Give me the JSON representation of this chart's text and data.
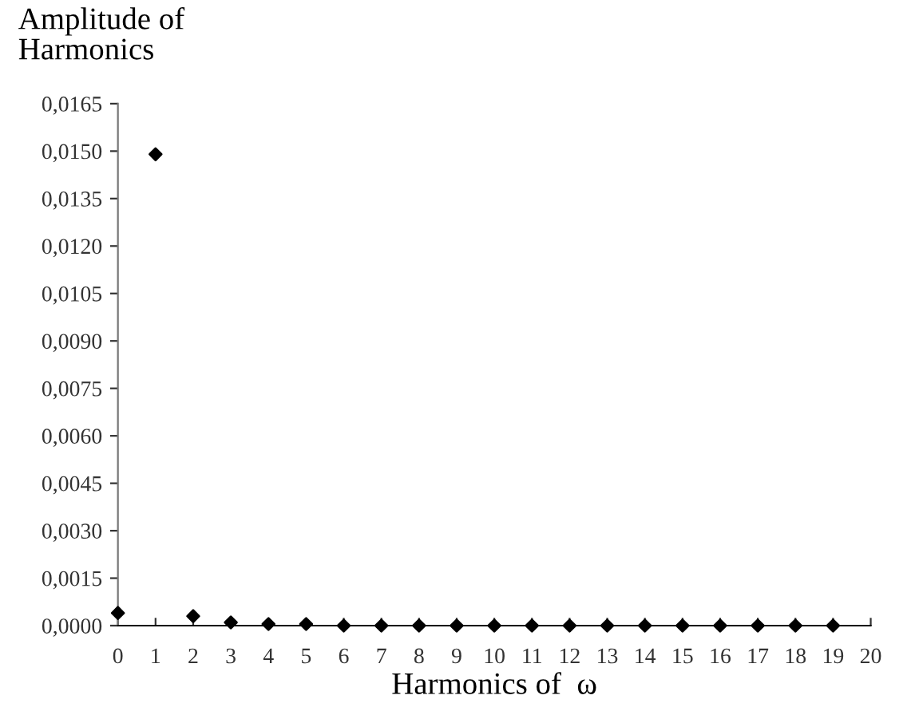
{
  "chart_data": {
    "type": "scatter",
    "ylabel": "Amplitude of\nHarmonics",
    "xlabel": "Harmonics of  ω",
    "x": [
      0,
      1,
      2,
      3,
      4,
      5,
      6,
      7,
      8,
      9,
      10,
      11,
      12,
      13,
      14,
      15,
      16,
      17,
      18,
      19
    ],
    "values": [
      0.0004,
      0.0149,
      0.0003,
      0.0001,
      5e-05,
      5e-05,
      0,
      0,
      0,
      0,
      0,
      0,
      0,
      0,
      0,
      0,
      0,
      0,
      0,
      0
    ],
    "color": "#000000",
    "marker": "diamond",
    "grid": false,
    "legend": false,
    "xlim": [
      0,
      20
    ],
    "xticks": [
      0,
      1,
      2,
      3,
      4,
      5,
      6,
      7,
      8,
      9,
      10,
      11,
      12,
      13,
      14,
      15,
      16,
      17,
      18,
      19,
      20
    ],
    "ylim": [
      0,
      0.0165
    ],
    "yticks": [
      {
        "value": 0,
        "label": "0,0000"
      },
      {
        "value": 0.0015,
        "label": "0,0015"
      },
      {
        "value": 0.003,
        "label": "0,0030"
      },
      {
        "value": 0.0045,
        "label": "0,0045"
      },
      {
        "value": 0.006,
        "label": "0,0060"
      },
      {
        "value": 0.0075,
        "label": "0,0075"
      },
      {
        "value": 0.009,
        "label": "0,0090"
      },
      {
        "value": 0.0105,
        "label": "0,0105"
      },
      {
        "value": 0.012,
        "label": "0,0120"
      },
      {
        "value": 0.0135,
        "label": "0,0135"
      },
      {
        "value": 0.015,
        "label": "0,0150"
      },
      {
        "value": 0.0165,
        "label": "0,0165"
      }
    ]
  }
}
